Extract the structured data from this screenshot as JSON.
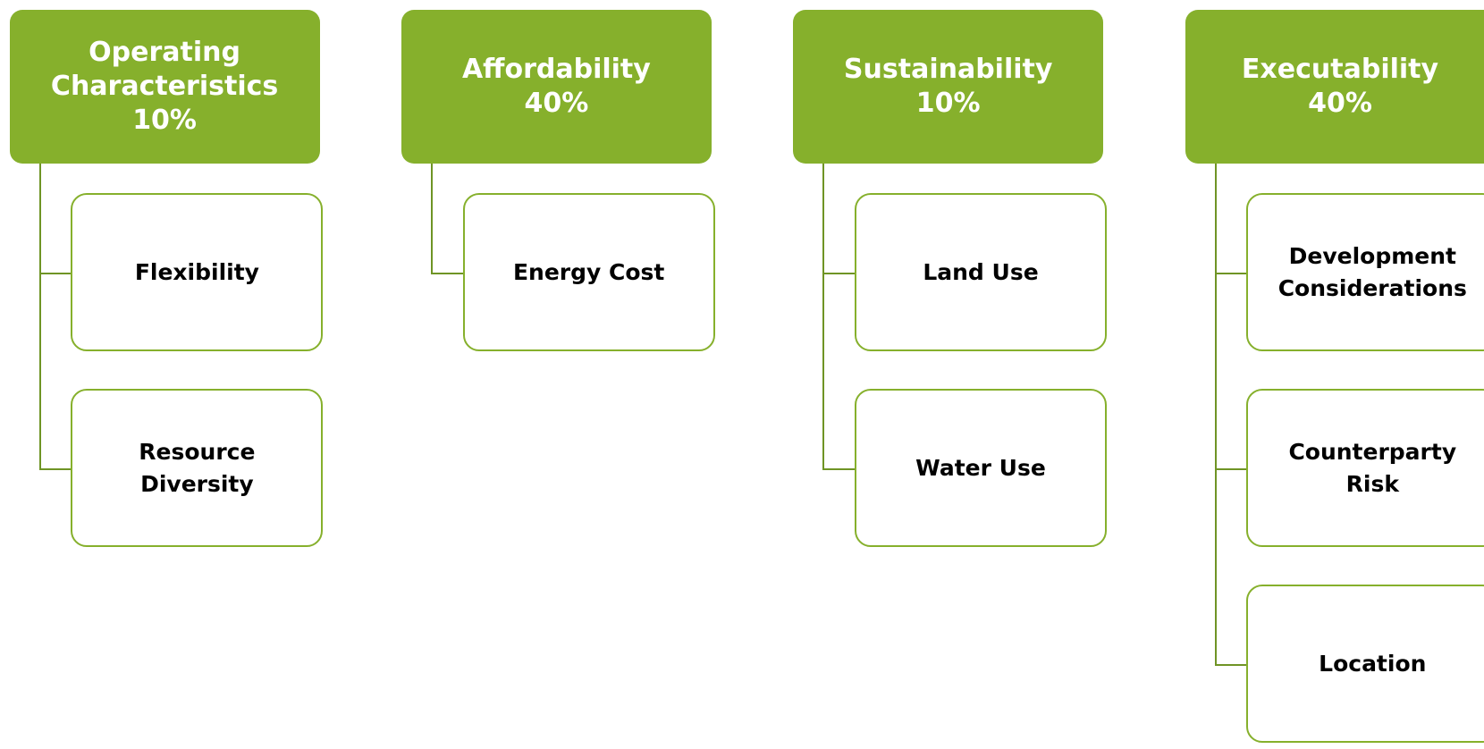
{
  "columns": [
    {
      "title": "Operating Characteristics",
      "weight": "10%",
      "items": [
        "Flexibility",
        "Resource Diversity"
      ]
    },
    {
      "title": "Affordability",
      "weight": "40%",
      "items": [
        "Energy Cost"
      ]
    },
    {
      "title": "Sustainability",
      "weight": "10%",
      "items": [
        "Land Use",
        "Water Use"
      ]
    },
    {
      "title": "Executability",
      "weight": "40%",
      "items": [
        "Development Considerations",
        "Counterparty Risk",
        "Location"
      ]
    }
  ]
}
